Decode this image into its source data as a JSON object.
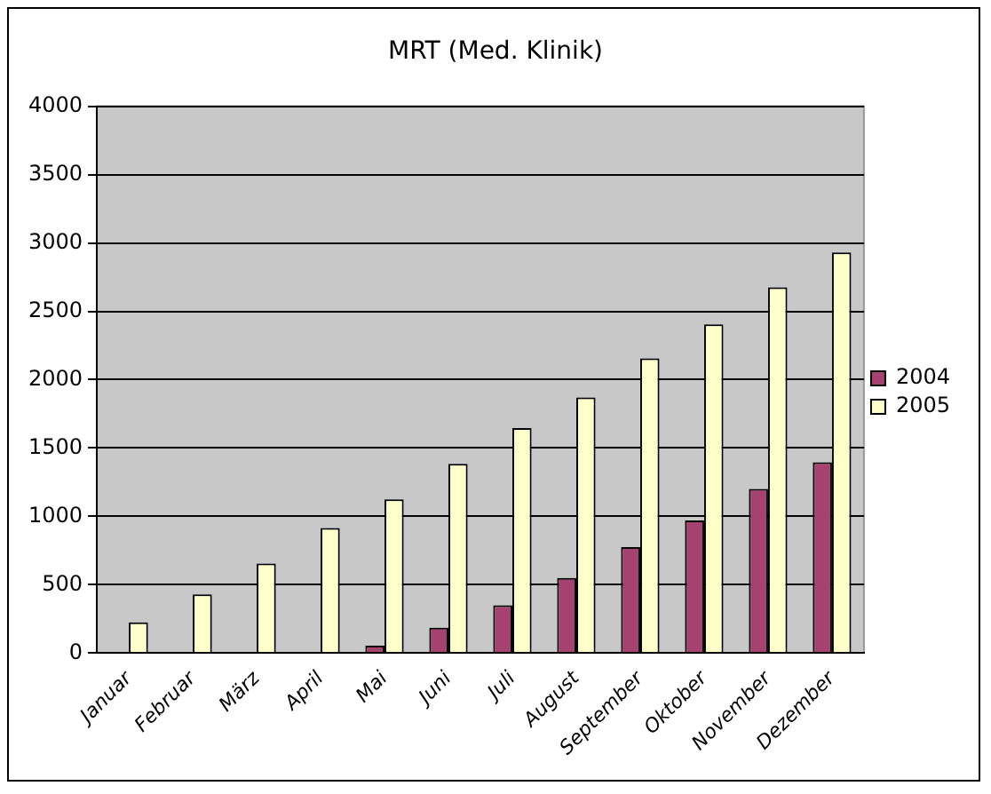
{
  "chart_data": {
    "type": "bar",
    "title": "MRT (Med. Klinik)",
    "categories": [
      "Januar",
      "Februar",
      "März",
      "April",
      "Mai",
      "Juni",
      "Juli",
      "August",
      "September",
      "Oktober",
      "November",
      "Dezember"
    ],
    "series": [
      {
        "name": "2004",
        "color": "#a5426f",
        "values": [
          0,
          0,
          0,
          0,
          55,
          185,
          350,
          550,
          775,
          970,
          1200,
          1395
        ]
      },
      {
        "name": "2005",
        "color": "#ffffcc",
        "values": [
          225,
          430,
          655,
          915,
          1125,
          1385,
          1645,
          1870,
          2155,
          2405,
          2675,
          2930
        ]
      }
    ],
    "ylim": [
      0,
      4000
    ],
    "yticks": [
      0,
      500,
      1000,
      1500,
      2000,
      2500,
      3000,
      3500,
      4000
    ],
    "grid": "y",
    "legend": "right"
  }
}
